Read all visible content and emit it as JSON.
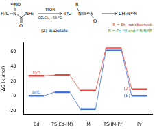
{
  "chart_data": {
    "type": "line",
    "y_label": "ΔG (kJ/mol)",
    "categories": [
      "Ed",
      "TS(Ed-IM)",
      "IM",
      "TS(IM-Pr)",
      "Pr"
    ],
    "series": [
      {
        "name": "syn",
        "color": "#e8453c",
        "values": [
          27,
          28,
          7,
          65,
          9
        ]
      },
      {
        "name": "anti",
        "color": "#3c6fd8",
        "values": [
          0,
          5,
          -18,
          62,
          0
        ]
      }
    ],
    "annotations": [
      {
        "text": "(Z)",
        "series": "syn",
        "category": "Pr"
      },
      {
        "text": "(E)",
        "series": "anti",
        "category": "Pr"
      }
    ],
    "ylim": [
      -25,
      72
    ],
    "yticks": [
      -20,
      0,
      20,
      40,
      60
    ],
    "grid": false
  },
  "scheme": {
    "reactant_atoms": [
      "H₃C",
      "N",
      "¹⁵NO",
      "O",
      "NH₂"
    ],
    "reagent": "TfOR",
    "conditions": "CD₂Cl₂, -60 °C",
    "intermediate_atoms": [
      "TfO",
      "R",
      "N",
      "¹⁵N",
      "O"
    ],
    "intermediate_label": "(Z)-diazotate",
    "product": "CH₂N¹⁵N",
    "notes": [
      "R = Et; not observed",
      "R = Pr; ¹H and ¹⁵N NMR"
    ]
  }
}
